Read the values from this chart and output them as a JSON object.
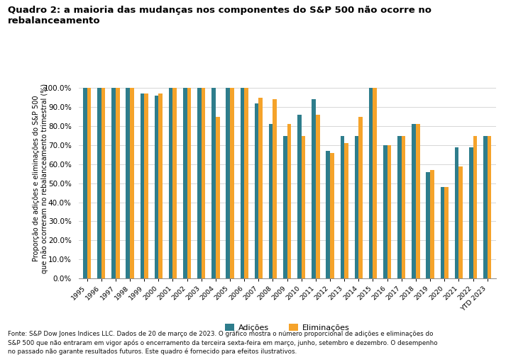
{
  "title": "Quadro 2: a maioria das mudanças nos componentes do S&P 500 não ocorre no\nrebalanceamento",
  "ylabel": "Proporção de adições e eliminações do S&P 500\nque não ocorreram no rebalanceamento trimestral (%)",
  "categories": [
    "1995",
    "1996",
    "1997",
    "1998",
    "1999",
    "2000",
    "2001",
    "2002",
    "2003",
    "2004",
    "2005",
    "2006",
    "2007",
    "2008",
    "2009",
    "2010",
    "2011",
    "2012",
    "2013",
    "2014",
    "2015",
    "2016",
    "2017",
    "2018",
    "2019",
    "2020",
    "2021",
    "2022",
    "YTD 2023"
  ],
  "additions_values": [
    1.0,
    1.0,
    1.0,
    1.0,
    0.97,
    0.96,
    1.0,
    1.0,
    1.0,
    1.0,
    1.0,
    1.0,
    0.92,
    0.81,
    0.75,
    0.86,
    0.94,
    0.67,
    0.75,
    0.75,
    1.0,
    0.7,
    0.75,
    0.81,
    0.56,
    0.48,
    0.69,
    0.69,
    0.75
  ],
  "eliminations_values": [
    1.0,
    1.0,
    1.0,
    1.0,
    0.97,
    0.97,
    1.0,
    1.0,
    1.0,
    0.85,
    1.0,
    1.0,
    0.95,
    0.94,
    0.81,
    0.75,
    0.86,
    0.66,
    0.71,
    0.85,
    1.0,
    0.7,
    0.75,
    0.81,
    0.57,
    0.48,
    0.59,
    0.75,
    0.75
  ],
  "color_additions": "#2e7d8c",
  "color_eliminations": "#f5a32a",
  "legend_additions": "Adições",
  "legend_eliminations": "Eliminações",
  "footnote_line1": "Fonte: S&P Dow Jones Indices LLC. Dados de 20 de março de 2023. O gráfico mostra o número proporcional de adições e eliminações do",
  "footnote_line2": "S&P 500 que não entraram em vigor após o encerramento da terceira sexta-feira em março, junho, setembro e dezembro. O desempenho",
  "footnote_line3": "no passado não garante resultados futuros. Este quadro é fornecido para efeitos ilustrativos.",
  "yticks": [
    0.0,
    0.1,
    0.2,
    0.3,
    0.4,
    0.5,
    0.6,
    0.7,
    0.8,
    0.9,
    1.0
  ]
}
